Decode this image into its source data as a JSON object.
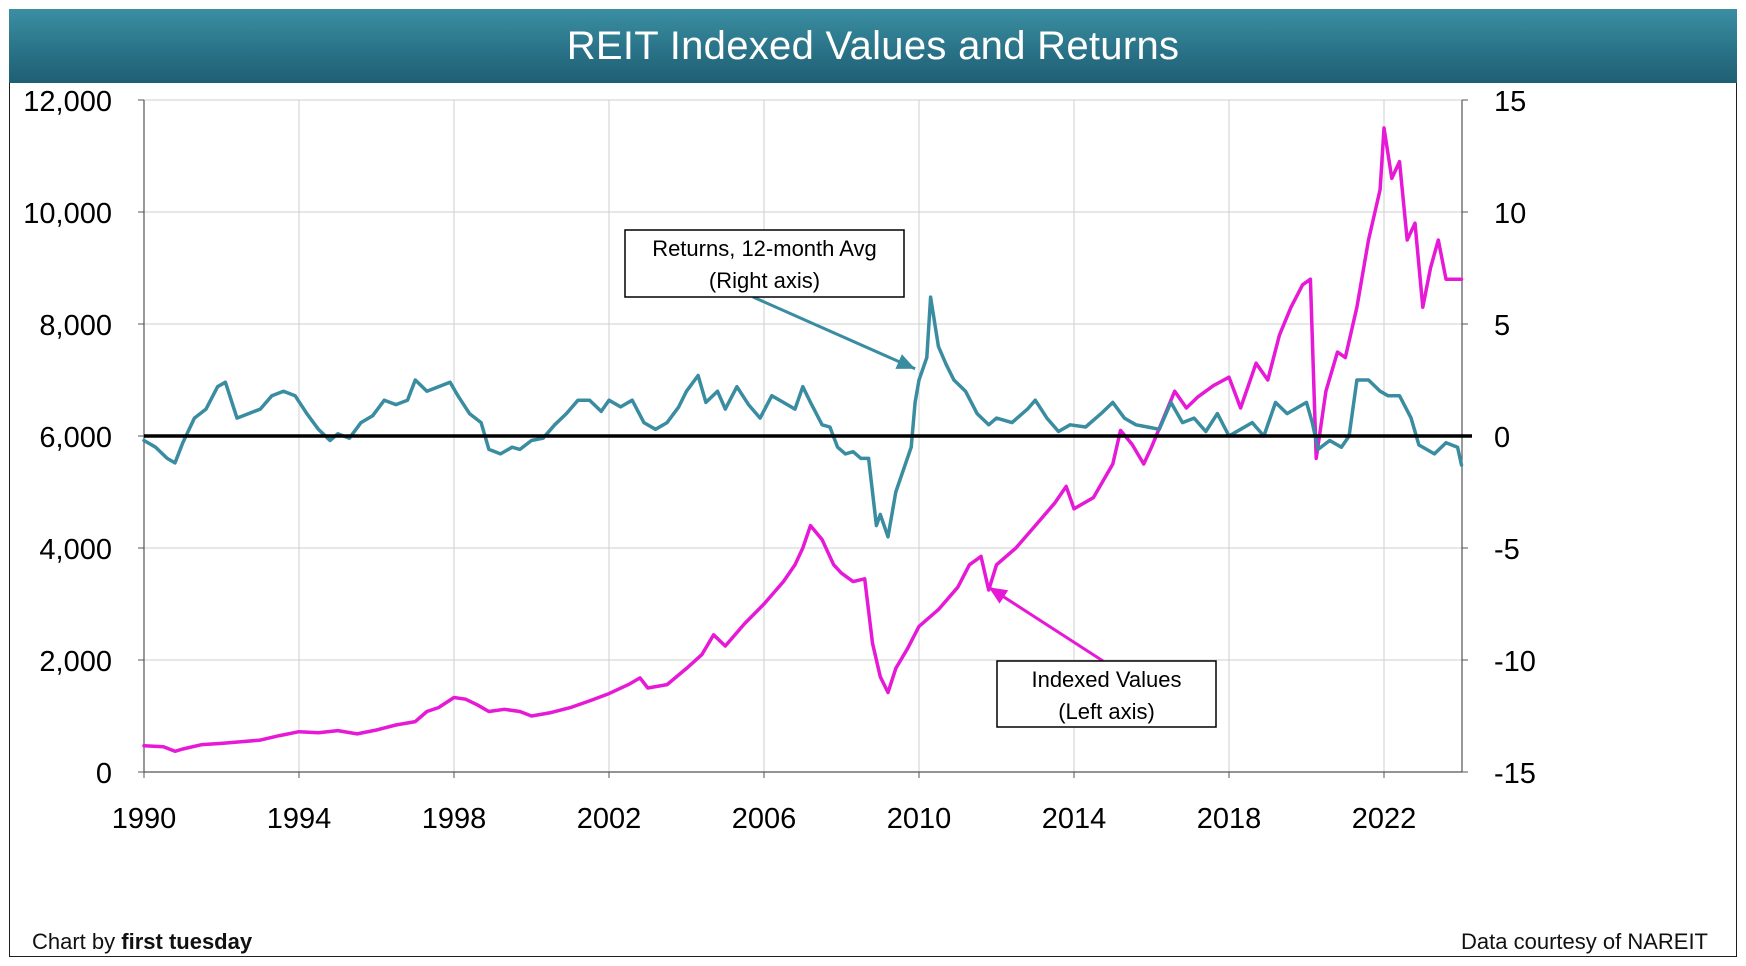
{
  "title": "REIT Indexed Values and Returns",
  "credit": {
    "prefix": "Chart by ",
    "brand": "first tuesday"
  },
  "source": "Data courtesy of NAREIT",
  "colors": {
    "indexed": "#e619d6",
    "returns": "#3a8ca0",
    "zero": "#000000",
    "grid": "#cfcfcf",
    "title_bar": "#2a7388"
  },
  "chart_data": {
    "type": "line",
    "dual_axis": true,
    "x_ticks": [
      "1990",
      "1994",
      "1998",
      "2002",
      "2006",
      "2010",
      "2014",
      "2018",
      "2022"
    ],
    "xlim": [
      1990,
      2024.5
    ],
    "y_left": {
      "ticks": [
        "0",
        "2,000",
        "4,000",
        "6,000",
        "8,000",
        "10,000",
        "12,000"
      ],
      "lim": [
        0,
        12000
      ]
    },
    "y_right": {
      "ticks": [
        "-15",
        "-10",
        "-5",
        "0",
        "5",
        "10",
        "15"
      ],
      "lim": [
        -15,
        15
      ]
    },
    "grid": true,
    "annotations": [
      {
        "lines": [
          "Returns, 12-month Avg",
          "(Right axis)"
        ],
        "points_to": [
          2009.9,
          3
        ]
      },
      {
        "lines": [
          "Indexed Values",
          "(Left axis)"
        ],
        "points_to": [
          2011.8,
          3300
        ]
      }
    ],
    "series": [
      {
        "name": "Indexed Values",
        "axis": "left",
        "points": [
          [
            1990.0,
            470
          ],
          [
            1990.5,
            450
          ],
          [
            1990.8,
            370
          ],
          [
            1991.0,
            410
          ],
          [
            1991.5,
            490
          ],
          [
            1992.0,
            510
          ],
          [
            1992.5,
            540
          ],
          [
            1993.0,
            570
          ],
          [
            1993.5,
            650
          ],
          [
            1994.0,
            720
          ],
          [
            1994.5,
            700
          ],
          [
            1995.0,
            740
          ],
          [
            1995.5,
            680
          ],
          [
            1996.0,
            750
          ],
          [
            1996.5,
            840
          ],
          [
            1997.0,
            900
          ],
          [
            1997.3,
            1080
          ],
          [
            1997.6,
            1150
          ],
          [
            1998.0,
            1330
          ],
          [
            1998.3,
            1300
          ],
          [
            1998.6,
            1200
          ],
          [
            1998.9,
            1080
          ],
          [
            1999.3,
            1120
          ],
          [
            1999.7,
            1080
          ],
          [
            2000.0,
            1000
          ],
          [
            2000.5,
            1060
          ],
          [
            2001.0,
            1150
          ],
          [
            2001.5,
            1270
          ],
          [
            2002.0,
            1400
          ],
          [
            2002.5,
            1560
          ],
          [
            2002.8,
            1680
          ],
          [
            2003.0,
            1500
          ],
          [
            2003.5,
            1560
          ],
          [
            2004.0,
            1850
          ],
          [
            2004.4,
            2100
          ],
          [
            2004.7,
            2450
          ],
          [
            2005.0,
            2250
          ],
          [
            2005.5,
            2650
          ],
          [
            2006.0,
            3000
          ],
          [
            2006.5,
            3400
          ],
          [
            2006.8,
            3700
          ],
          [
            2007.0,
            4000
          ],
          [
            2007.2,
            4400
          ],
          [
            2007.5,
            4150
          ],
          [
            2007.8,
            3700
          ],
          [
            2008.0,
            3550
          ],
          [
            2008.3,
            3400
          ],
          [
            2008.6,
            3450
          ],
          [
            2008.8,
            2300
          ],
          [
            2009.0,
            1700
          ],
          [
            2009.2,
            1420
          ],
          [
            2009.4,
            1850
          ],
          [
            2009.7,
            2200
          ],
          [
            2010.0,
            2600
          ],
          [
            2010.5,
            2900
          ],
          [
            2011.0,
            3300
          ],
          [
            2011.3,
            3700
          ],
          [
            2011.6,
            3850
          ],
          [
            2011.8,
            3250
          ],
          [
            2012.0,
            3700
          ],
          [
            2012.5,
            4000
          ],
          [
            2013.0,
            4400
          ],
          [
            2013.5,
            4800
          ],
          [
            2013.8,
            5100
          ],
          [
            2014.0,
            4700
          ],
          [
            2014.5,
            4900
          ],
          [
            2015.0,
            5500
          ],
          [
            2015.2,
            6100
          ],
          [
            2015.5,
            5850
          ],
          [
            2015.8,
            5500
          ],
          [
            2016.0,
            5800
          ],
          [
            2016.3,
            6300
          ],
          [
            2016.6,
            6800
          ],
          [
            2016.9,
            6500
          ],
          [
            2017.2,
            6700
          ],
          [
            2017.6,
            6900
          ],
          [
            2018.0,
            7050
          ],
          [
            2018.3,
            6500
          ],
          [
            2018.7,
            7300
          ],
          [
            2019.0,
            7000
          ],
          [
            2019.3,
            7800
          ],
          [
            2019.6,
            8300
          ],
          [
            2019.9,
            8700
          ],
          [
            2020.1,
            8800
          ],
          [
            2020.25,
            5600
          ],
          [
            2020.5,
            6800
          ],
          [
            2020.8,
            7500
          ],
          [
            2021.0,
            7400
          ],
          [
            2021.3,
            8300
          ],
          [
            2021.6,
            9500
          ],
          [
            2021.9,
            10400
          ],
          [
            2022.0,
            11500
          ],
          [
            2022.2,
            10600
          ],
          [
            2022.4,
            10900
          ],
          [
            2022.6,
            9500
          ],
          [
            2022.8,
            9800
          ],
          [
            2023.0,
            8300
          ],
          [
            2023.2,
            9000
          ],
          [
            2023.4,
            9500
          ],
          [
            2023.6,
            8800
          ],
          [
            2024.0,
            8800
          ]
        ]
      },
      {
        "name": "Returns, 12-month Avg",
        "axis": "right",
        "points": [
          [
            1990.0,
            -0.2
          ],
          [
            1990.3,
            -0.5
          ],
          [
            1990.6,
            -1.0
          ],
          [
            1990.8,
            -1.2
          ],
          [
            1991.0,
            -0.3
          ],
          [
            1991.3,
            0.8
          ],
          [
            1991.6,
            1.2
          ],
          [
            1991.9,
            2.2
          ],
          [
            1992.1,
            2.4
          ],
          [
            1992.4,
            0.8
          ],
          [
            1992.7,
            1.0
          ],
          [
            1993.0,
            1.2
          ],
          [
            1993.3,
            1.8
          ],
          [
            1993.6,
            2.0
          ],
          [
            1993.9,
            1.8
          ],
          [
            1994.2,
            1.0
          ],
          [
            1994.5,
            0.3
          ],
          [
            1994.8,
            -0.2
          ],
          [
            1995.0,
            0.1
          ],
          [
            1995.3,
            -0.1
          ],
          [
            1995.6,
            0.6
          ],
          [
            1995.9,
            0.9
          ],
          [
            1996.2,
            1.6
          ],
          [
            1996.5,
            1.4
          ],
          [
            1996.8,
            1.6
          ],
          [
            1997.0,
            2.5
          ],
          [
            1997.3,
            2.0
          ],
          [
            1997.6,
            2.2
          ],
          [
            1997.9,
            2.4
          ],
          [
            1998.1,
            1.8
          ],
          [
            1998.4,
            1.0
          ],
          [
            1998.7,
            0.6
          ],
          [
            1998.9,
            -0.6
          ],
          [
            1999.2,
            -0.8
          ],
          [
            1999.5,
            -0.5
          ],
          [
            1999.7,
            -0.6
          ],
          [
            2000.0,
            -0.2
          ],
          [
            2000.3,
            -0.1
          ],
          [
            2000.6,
            0.5
          ],
          [
            2000.9,
            1.0
          ],
          [
            2001.2,
            1.6
          ],
          [
            2001.5,
            1.6
          ],
          [
            2001.8,
            1.1
          ],
          [
            2002.0,
            1.6
          ],
          [
            2002.3,
            1.3
          ],
          [
            2002.6,
            1.6
          ],
          [
            2002.9,
            0.6
          ],
          [
            2003.2,
            0.3
          ],
          [
            2003.5,
            0.6
          ],
          [
            2003.8,
            1.3
          ],
          [
            2004.0,
            2.0
          ],
          [
            2004.3,
            2.7
          ],
          [
            2004.5,
            1.5
          ],
          [
            2004.8,
            2.0
          ],
          [
            2005.0,
            1.2
          ],
          [
            2005.3,
            2.2
          ],
          [
            2005.6,
            1.4
          ],
          [
            2005.9,
            0.8
          ],
          [
            2006.2,
            1.8
          ],
          [
            2006.5,
            1.5
          ],
          [
            2006.8,
            1.2
          ],
          [
            2007.0,
            2.2
          ],
          [
            2007.2,
            1.5
          ],
          [
            2007.5,
            0.5
          ],
          [
            2007.7,
            0.4
          ],
          [
            2007.9,
            -0.5
          ],
          [
            2008.1,
            -0.8
          ],
          [
            2008.3,
            -0.7
          ],
          [
            2008.5,
            -1.0
          ],
          [
            2008.7,
            -1.0
          ],
          [
            2008.8,
            -2.5
          ],
          [
            2008.9,
            -4.0
          ],
          [
            2009.0,
            -3.5
          ],
          [
            2009.2,
            -4.5
          ],
          [
            2009.4,
            -2.5
          ],
          [
            2009.6,
            -1.5
          ],
          [
            2009.8,
            -0.5
          ],
          [
            2009.9,
            1.5
          ],
          [
            2010.0,
            2.5
          ],
          [
            2010.2,
            3.5
          ],
          [
            2010.3,
            6.2
          ],
          [
            2010.5,
            4.0
          ],
          [
            2010.7,
            3.2
          ],
          [
            2010.9,
            2.5
          ],
          [
            2011.2,
            2.0
          ],
          [
            2011.5,
            1.0
          ],
          [
            2011.8,
            0.5
          ],
          [
            2012.0,
            0.8
          ],
          [
            2012.4,
            0.6
          ],
          [
            2012.8,
            1.2
          ],
          [
            2013.0,
            1.6
          ],
          [
            2013.3,
            0.8
          ],
          [
            2013.6,
            0.2
          ],
          [
            2013.9,
            0.5
          ],
          [
            2014.3,
            0.4
          ],
          [
            2014.7,
            1.0
          ],
          [
            2015.0,
            1.5
          ],
          [
            2015.3,
            0.8
          ],
          [
            2015.6,
            0.5
          ],
          [
            2015.9,
            0.4
          ],
          [
            2016.2,
            0.3
          ],
          [
            2016.5,
            1.5
          ],
          [
            2016.8,
            0.6
          ],
          [
            2017.1,
            0.8
          ],
          [
            2017.4,
            0.2
          ],
          [
            2017.7,
            1.0
          ],
          [
            2018.0,
            0.0
          ],
          [
            2018.3,
            0.3
          ],
          [
            2018.6,
            0.6
          ],
          [
            2018.9,
            0.0
          ],
          [
            2019.2,
            1.5
          ],
          [
            2019.5,
            1.0
          ],
          [
            2019.8,
            1.3
          ],
          [
            2020.0,
            1.5
          ],
          [
            2020.15,
            0.6
          ],
          [
            2020.3,
            -0.6
          ],
          [
            2020.6,
            -0.2
          ],
          [
            2020.9,
            -0.5
          ],
          [
            2021.1,
            0.0
          ],
          [
            2021.3,
            2.5
          ],
          [
            2021.6,
            2.5
          ],
          [
            2021.9,
            2.0
          ],
          [
            2022.1,
            1.8
          ],
          [
            2022.4,
            1.8
          ],
          [
            2022.7,
            0.8
          ],
          [
            2022.9,
            -0.4
          ],
          [
            2023.1,
            -0.6
          ],
          [
            2023.3,
            -0.8
          ],
          [
            2023.6,
            -0.3
          ],
          [
            2023.9,
            -0.5
          ],
          [
            2024.0,
            -1.3
          ]
        ]
      }
    ]
  }
}
